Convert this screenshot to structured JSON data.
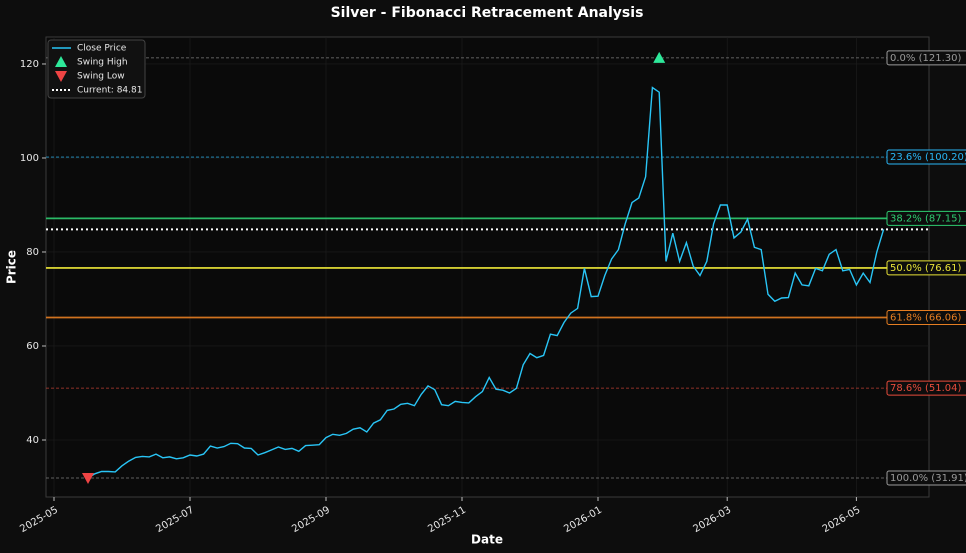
{
  "chart_data": {
    "type": "line",
    "title": "Silver - Fibonacci Retracement Analysis",
    "x_label": "Date",
    "y_label": "Price",
    "categories": [
      "2025-05",
      null,
      null,
      null,
      null,
      null,
      null,
      null,
      null,
      null,
      null,
      null,
      null,
      null,
      null,
      null,
      null,
      null,
      null,
      null,
      "2025-07",
      null,
      null,
      null,
      null,
      null,
      null,
      null,
      null,
      null,
      null,
      null,
      null,
      null,
      null,
      null,
      null,
      null,
      null,
      null,
      "2025-09",
      null,
      null,
      null,
      null,
      null,
      null,
      null,
      null,
      null,
      null,
      null,
      null,
      null,
      null,
      null,
      null,
      null,
      null,
      null,
      "2025-11",
      null,
      null,
      null,
      null,
      null,
      null,
      null,
      null,
      null,
      null,
      null,
      null,
      null,
      null,
      null,
      null,
      null,
      null,
      null,
      "2026-01",
      null,
      null,
      null,
      null,
      null,
      null,
      null,
      null,
      null,
      null,
      null,
      null,
      null,
      null,
      null,
      null,
      null,
      null,
      "2026-03",
      null,
      null,
      null,
      null,
      null,
      null,
      null,
      null,
      null,
      null,
      null,
      null,
      null,
      null,
      null,
      null,
      null,
      null,
      "2026-05",
      null,
      null,
      null,
      null
    ],
    "series": [
      {
        "name": "Close Price",
        "color": "#29c5f6",
        "values": [
          null,
          null,
          null,
          null,
          null,
          31.91,
          32.8,
          33.3,
          33.3,
          33.2,
          34.5,
          35.5,
          36.3,
          36.5,
          36.4,
          37.0,
          36.2,
          36.4,
          36.0,
          36.2,
          36.8,
          36.6,
          37.0,
          38.7,
          38.3,
          38.6,
          39.3,
          39.2,
          38.3,
          38.2,
          36.8,
          37.3,
          37.9,
          38.5,
          38.0,
          38.2,
          37.6,
          38.8,
          38.9,
          39.0,
          40.5,
          41.2,
          41.0,
          41.4,
          42.3,
          42.6,
          41.7,
          43.6,
          44.3,
          46.3,
          46.6,
          47.6,
          47.8,
          47.3,
          49.7,
          51.5,
          50.7,
          47.5,
          47.3,
          48.2,
          48.0,
          47.9,
          49.2,
          50.3,
          53.3,
          50.8,
          50.6,
          50.0,
          51.0,
          56.0,
          58.4,
          57.5,
          58.0,
          62.5,
          62.2,
          65.0,
          67.0,
          68.0,
          76.5,
          70.5,
          70.6,
          75.0,
          78.5,
          80.5,
          86.0,
          90.5,
          91.5,
          96.0,
          115.0,
          114.0,
          78.0,
          84.0,
          78.0,
          82.0,
          77.0,
          75.0,
          78.0,
          86.0,
          90.0,
          90.0,
          83.0,
          84.2,
          87.0,
          81.0,
          80.5,
          71.0,
          69.5,
          70.2,
          70.3,
          75.5,
          73.0,
          72.8,
          76.5,
          76.0,
          79.5,
          80.5,
          76.0,
          76.3,
          73.0,
          75.5,
          73.5,
          80.0,
          84.81
        ]
      },
      {
        "name": "Swing High",
        "color": "#2ee89a",
        "marker": "up",
        "values": [
          null,
          null,
          null,
          null,
          null,
          null,
          null,
          null,
          null,
          null,
          null,
          null,
          null,
          null,
          null,
          null,
          null,
          null,
          null,
          null,
          null,
          null,
          null,
          null,
          null,
          null,
          null,
          null,
          null,
          null,
          null,
          null,
          null,
          null,
          null,
          null,
          null,
          null,
          null,
          null,
          null,
          null,
          null,
          null,
          null,
          null,
          null,
          null,
          null,
          null,
          null,
          null,
          null,
          null,
          null,
          null,
          null,
          null,
          null,
          null,
          null,
          null,
          null,
          null,
          null,
          null,
          null,
          null,
          null,
          null,
          null,
          null,
          null,
          null,
          null,
          null,
          null,
          null,
          null,
          null,
          null,
          null,
          null,
          null,
          null,
          null,
          null,
          null,
          null,
          121.3,
          null,
          null,
          null,
          null,
          null,
          null,
          null,
          null,
          null,
          null,
          null,
          null,
          null,
          null,
          null,
          null,
          null,
          null,
          null,
          null,
          null,
          null,
          null,
          null,
          null,
          null,
          null,
          null,
          null,
          null,
          null,
          null,
          null
        ]
      },
      {
        "name": "Swing Low",
        "color": "#ef4444",
        "marker": "down",
        "values": [
          null,
          null,
          null,
          null,
          null,
          31.91,
          null,
          null,
          null,
          null,
          null,
          null,
          null,
          null,
          null,
          null,
          null,
          null,
          null,
          null,
          null,
          null,
          null,
          null,
          null,
          null,
          null,
          null,
          null,
          null,
          null,
          null,
          null,
          null,
          null,
          null,
          null,
          null,
          null,
          null,
          null,
          null,
          null,
          null,
          null,
          null,
          null,
          null,
          null,
          null,
          null,
          null,
          null,
          null,
          null,
          null,
          null,
          null,
          null,
          null,
          null,
          null,
          null,
          null,
          null,
          null,
          null,
          null,
          null,
          null,
          null,
          null,
          null,
          null,
          null,
          null,
          null,
          null,
          null,
          null,
          null,
          null,
          null,
          null,
          null,
          null,
          null,
          null,
          null,
          null,
          null,
          null,
          null,
          null,
          null,
          null,
          null,
          null,
          null,
          null,
          null,
          null,
          null,
          null,
          null,
          null,
          null,
          null,
          null,
          null,
          null,
          null,
          null,
          null,
          null,
          null,
          null,
          null,
          null,
          null,
          null,
          null,
          null
        ]
      }
    ],
    "current": {
      "value": 84.81,
      "label": "Current: 84.81",
      "color": "#ffffff"
    },
    "levels": [
      {
        "value": 121.3,
        "label": "0.0% (121.30)",
        "color": "#9a9a9a",
        "style": "dashed"
      },
      {
        "value": 100.2,
        "label": "23.6% (100.20)",
        "color": "#29b6f6",
        "style": "dashed"
      },
      {
        "value": 87.15,
        "label": "38.2% (87.15)",
        "color": "#2ecc71",
        "style": "solid"
      },
      {
        "value": 76.61,
        "label": "50.0% (76.61)",
        "color": "#e8e337",
        "style": "solid"
      },
      {
        "value": 66.06,
        "label": "61.8% (66.06)",
        "color": "#e67e22",
        "style": "solid"
      },
      {
        "value": 51.04,
        "label": "78.6% (51.04)",
        "color": "#e74c3c",
        "style": "dashed"
      },
      {
        "value": 31.91,
        "label": "100.0% (31.91)",
        "color": "#9a9a9a",
        "style": "dashed"
      }
    ],
    "ylim": [
      27.87,
      125.74
    ],
    "yticks": [
      40,
      60,
      80,
      100,
      120
    ],
    "grid": true
  }
}
